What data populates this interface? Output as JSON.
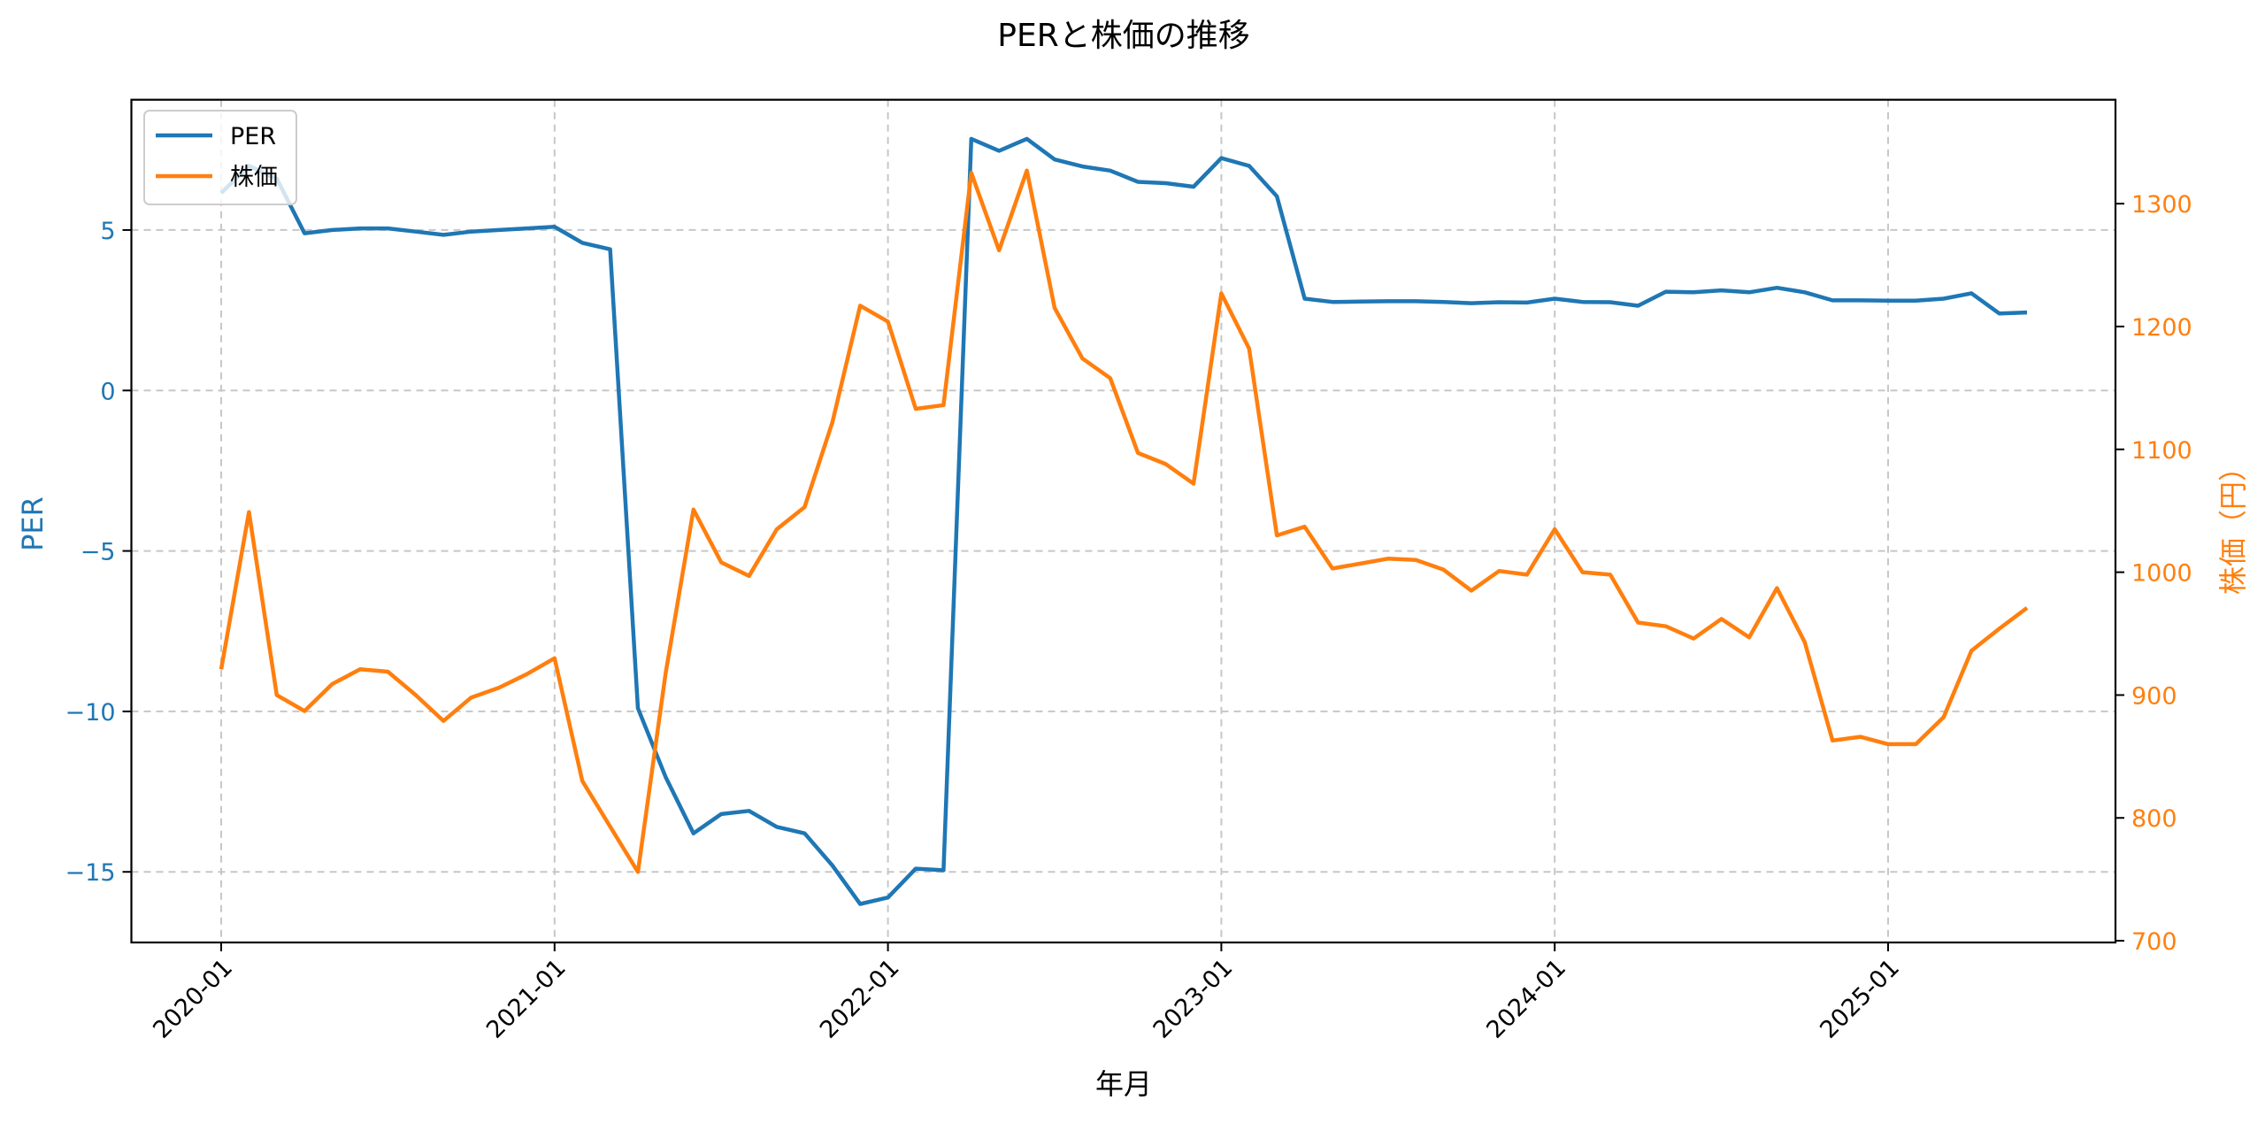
{
  "chart_data": {
    "type": "line",
    "title": "PERと株価の推移",
    "xlabel": "年月",
    "ylabel": "PER",
    "ylabel_right": "株価（円）",
    "x_tick_labels": [
      "2020-01",
      "2021-01",
      "2022-01",
      "2023-01",
      "2024-01",
      "2025-01"
    ],
    "y_ticks_left": [
      5,
      0,
      -5,
      -10,
      -15
    ],
    "y_tick_labels_left": [
      "5",
      "0",
      "−5",
      "−10",
      "−15"
    ],
    "y_ticks_right": [
      1300,
      1200,
      1100,
      1000,
      900,
      800,
      700
    ],
    "y_tick_labels_right": [
      "1300",
      "1200",
      "1100",
      "1000",
      "900",
      "800",
      "700"
    ],
    "ylim_left": [
      -17.2,
      9.06
    ],
    "ylim_right": [
      698.6,
      1384.6
    ],
    "grid": true,
    "legend_position": "upper left",
    "x": [
      "2020-01",
      "2020-02",
      "2020-03",
      "2020-04",
      "2020-05",
      "2020-06",
      "2020-07",
      "2020-08",
      "2020-09",
      "2020-10",
      "2020-11",
      "2020-12",
      "2021-01",
      "2021-02",
      "2021-03",
      "2021-04",
      "2021-05",
      "2021-06",
      "2021-07",
      "2021-08",
      "2021-09",
      "2021-10",
      "2021-11",
      "2021-12",
      "2022-01",
      "2022-02",
      "2022-03",
      "2022-04",
      "2022-05",
      "2022-06",
      "2022-07",
      "2022-08",
      "2022-09",
      "2022-10",
      "2022-11",
      "2022-12",
      "2023-01",
      "2023-02",
      "2023-03",
      "2023-04",
      "2023-05",
      "2023-06",
      "2023-07",
      "2023-08",
      "2023-09",
      "2023-10",
      "2023-11",
      "2023-12",
      "2024-01",
      "2024-02",
      "2024-03",
      "2024-04",
      "2024-05",
      "2024-06",
      "2024-07",
      "2024-08",
      "2024-09",
      "2024-10",
      "2024-11",
      "2024-12",
      "2025-01",
      "2025-02",
      "2025-03",
      "2025-04",
      "2025-05",
      "2025-06"
    ],
    "series": [
      {
        "name": "PER",
        "axis": "left",
        "color": "#1f77b4",
        "values": [
          6.15,
          7.0,
          6.6,
          4.9,
          5.0,
          5.05,
          5.05,
          4.95,
          4.85,
          4.95,
          5.0,
          5.05,
          5.1,
          4.6,
          4.4,
          -9.9,
          -12.05,
          -13.8,
          -13.2,
          -13.1,
          -13.6,
          -13.8,
          -14.8,
          -16.0,
          -15.8,
          -14.9,
          -14.95,
          7.84,
          7.47,
          7.84,
          7.2,
          6.98,
          6.85,
          6.5,
          6.46,
          6.35,
          7.24,
          7.0,
          6.05,
          2.86,
          2.76,
          2.77,
          2.78,
          2.78,
          2.76,
          2.72,
          2.75,
          2.74,
          2.86,
          2.76,
          2.75,
          2.64,
          3.08,
          3.06,
          3.12,
          3.06,
          3.2,
          3.06,
          2.81,
          2.81,
          2.8,
          2.8,
          2.86,
          3.03,
          2.4,
          2.43
        ]
      },
      {
        "name": "株価",
        "axis": "right",
        "color": "#ff7f0e",
        "values": [
          921,
          1049,
          900,
          887,
          909,
          921,
          919,
          900,
          879,
          898,
          906,
          917,
          930,
          830,
          793,
          756,
          918,
          1051,
          1008,
          997,
          1035,
          1053,
          1122,
          1217,
          1204,
          1133,
          1136,
          1325,
          1262,
          1327,
          1215,
          1174,
          1158,
          1097,
          1088,
          1072,
          1227,
          1182,
          1030,
          1037,
          1003,
          1007,
          1011,
          1010,
          1002,
          985,
          1001,
          998,
          1035,
          1000,
          998,
          959,
          956,
          946,
          962,
          947,
          987,
          943,
          863,
          866,
          860,
          860,
          882,
          936,
          954,
          971
        ]
      }
    ]
  },
  "legend": {
    "items": [
      {
        "label": "PER",
        "color": "#1f77b4"
      },
      {
        "label": "株価",
        "color": "#ff7f0e"
      }
    ]
  },
  "colors": {
    "left_axis": "#1f77b4",
    "right_axis": "#ff7f0e",
    "grid": "#c7c7c7",
    "spine": "#000000"
  }
}
